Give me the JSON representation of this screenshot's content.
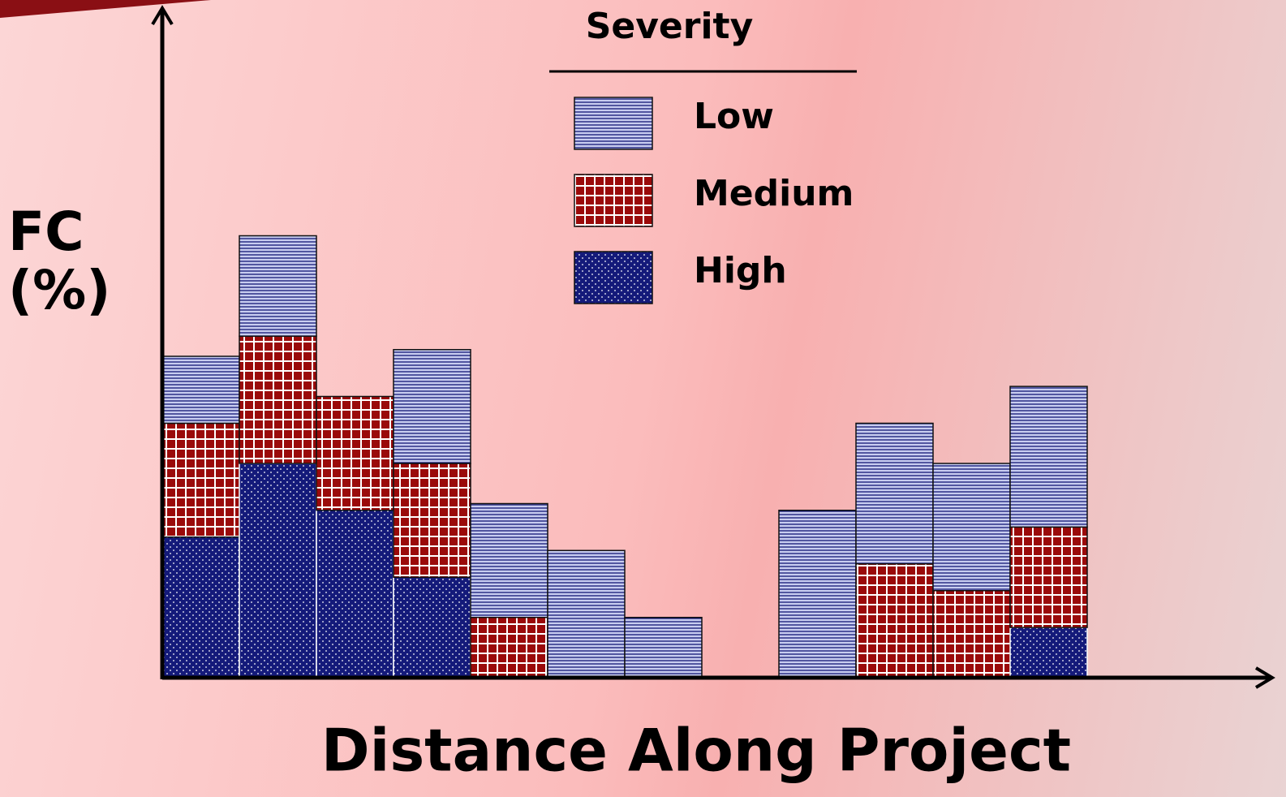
{
  "chart_data": {
    "type": "stacked_bar",
    "x_label": "Distance Along Project",
    "y_label": "FC (%)",
    "legend_title": "Severity",
    "categories": [
      null,
      null,
      null,
      null,
      null,
      null,
      null,
      null,
      null,
      null,
      null,
      null
    ],
    "ylim": [
      0,
      100
    ],
    "series": [
      {
        "name": "Low",
        "color": "#c8cdf0",
        "hatch": "lines",
        "values": [
          10,
          15,
          0,
          17,
          17,
          19,
          9,
          0,
          25,
          21,
          19,
          21
        ]
      },
      {
        "name": "Medium",
        "color": "#9a0a0a",
        "hatch": "grid",
        "values": [
          17,
          19,
          17,
          17,
          9,
          0,
          0,
          0,
          0,
          17,
          13,
          15
        ]
      },
      {
        "name": "High",
        "color": "#141a7a",
        "hatch": "dots",
        "values": [
          21,
          32,
          25,
          15,
          0,
          0,
          0,
          0,
          0,
          0,
          0,
          7.5
        ]
      }
    ]
  }
}
